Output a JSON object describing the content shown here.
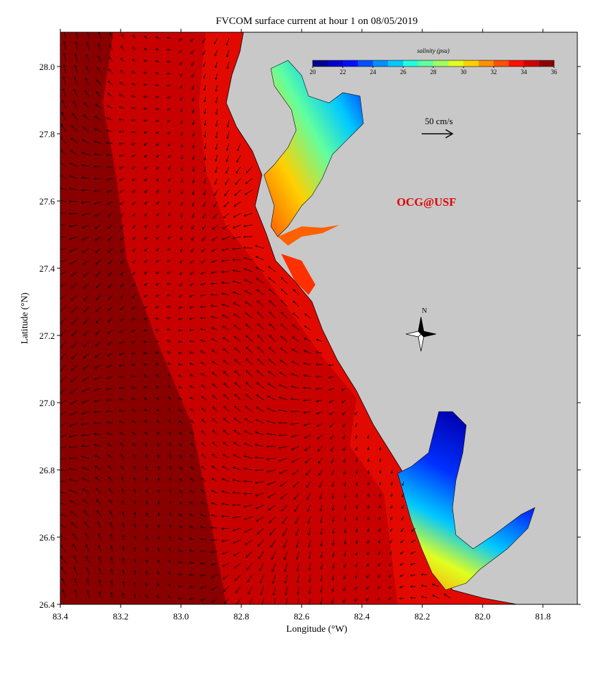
{
  "title": "FVCOM surface current at hour 1 on 08/05/2019",
  "map": {
    "x_axis": {
      "label": "Longitude (°W)",
      "lim": [
        83.4,
        81.686
      ],
      "ticks": [
        83.4,
        83.2,
        {
          "value": 83,
          "label": "83.0"
        },
        82.8,
        82.6,
        82.4,
        82.2,
        {
          "value": 82,
          "label": "82.0"
        },
        81.8
      ]
    },
    "y_axis": {
      "label": "Latitude (°N)",
      "lim": [
        26.4,
        28.102
      ],
      "ticks": [
        26.4,
        26.6,
        26.8,
        {
          "value": 27,
          "label": "27.0"
        },
        27.2,
        27.4,
        27.6,
        27.8,
        {
          "value": 28,
          "label": "28.0"
        }
      ]
    },
    "colorbar": {
      "label": "salinity (psu)",
      "lim": [
        20,
        36
      ],
      "ticks": [
        20,
        22,
        24,
        26,
        28,
        30,
        32,
        34,
        36
      ],
      "colors": [
        "#00008f",
        "#0000c8",
        "#0010ff",
        "#0050ff",
        "#0090ff",
        "#00c8ff",
        "#20ffe0",
        "#60ffa0",
        "#a0ff60",
        "#e0ff20",
        "#ffd000",
        "#ff9000",
        "#ff5000",
        "#ff1000",
        "#d00000",
        "#900000"
      ]
    },
    "scale_label": "50 cm/s",
    "watermark": "OCG@USF",
    "compass": "N"
  }
}
